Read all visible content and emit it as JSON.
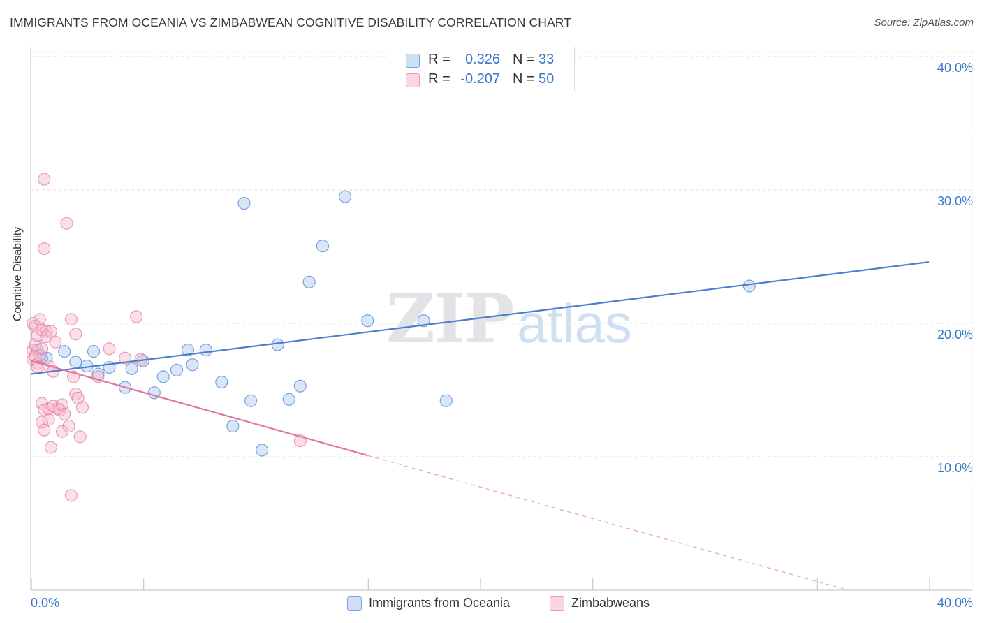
{
  "title": "IMMIGRANTS FROM OCEANIA VS ZIMBABWEAN COGNITIVE DISABILITY CORRELATION CHART",
  "source": "Source: ZipAtlas.com",
  "watermark": {
    "zip": "ZIP",
    "atlas": "atlas"
  },
  "correlation_box": {
    "rows": [
      {
        "r_label": "R =",
        "r_value": "0.326",
        "n_label": "N =",
        "n_value": "33",
        "color": "#a9c8f0"
      },
      {
        "r_label": "R =",
        "r_value": "-0.207",
        "n_label": "N =",
        "n_value": "50",
        "color": "#f6b9cc"
      }
    ]
  },
  "legend": {
    "items": [
      {
        "label": "Immigrants from Oceania",
        "color": "#a9c8f0"
      },
      {
        "label": "Zimbabweans",
        "color": "#f6b9cc"
      }
    ]
  },
  "chart_data": {
    "type": "scatter",
    "title": "IMMIGRANTS FROM OCEANIA VS ZIMBABWEAN COGNITIVE DISABILITY CORRELATION CHART",
    "xlabel": "",
    "ylabel": "Cognitive Disability",
    "xlim": [
      0,
      40
    ],
    "ylim": [
      0,
      42
    ],
    "x_tick_labels": {
      "left": "0.0%",
      "right": "40.0%"
    },
    "y_ticks": [
      10,
      20,
      30,
      40
    ],
    "y_tick_labels": [
      "10.0%",
      "20.0%",
      "30.0%",
      "40.0%"
    ],
    "grid": true,
    "legend_position": "bottom-center",
    "series": [
      {
        "name": "Immigrants from Oceania",
        "color": "#4a7fd0",
        "fill": "#a9c8f0",
        "points": [
          [
            0.3,
            18.0
          ],
          [
            0.5,
            17.4
          ],
          [
            0.7,
            17.4
          ],
          [
            1.5,
            17.9
          ],
          [
            2.0,
            17.1
          ],
          [
            2.5,
            16.8
          ],
          [
            2.8,
            17.9
          ],
          [
            3.0,
            16.2
          ],
          [
            3.5,
            16.7
          ],
          [
            4.2,
            15.2
          ],
          [
            4.5,
            16.6
          ],
          [
            5.0,
            17.2
          ],
          [
            5.5,
            14.8
          ],
          [
            5.9,
            16.0
          ],
          [
            6.5,
            16.5
          ],
          [
            7.0,
            18.0
          ],
          [
            7.2,
            16.9
          ],
          [
            7.8,
            18.0
          ],
          [
            8.5,
            15.6
          ],
          [
            9.0,
            12.3
          ],
          [
            9.5,
            29.0
          ],
          [
            9.8,
            14.2
          ],
          [
            10.3,
            10.5
          ],
          [
            11.0,
            18.4
          ],
          [
            11.5,
            14.3
          ],
          [
            12.0,
            15.3
          ],
          [
            12.4,
            23.1
          ],
          [
            13.0,
            25.8
          ],
          [
            14.0,
            29.5
          ],
          [
            15.0,
            20.2
          ],
          [
            17.5,
            20.2
          ],
          [
            18.5,
            14.2
          ],
          [
            32.0,
            22.8
          ]
        ],
        "trend": {
          "x": [
            0,
            40
          ],
          "y": [
            16.2,
            24.6
          ],
          "style": "solid"
        }
      },
      {
        "name": "Zimbabweans",
        "color": "#e07799",
        "fill": "#f6b9cc",
        "points": [
          [
            0.1,
            20.0
          ],
          [
            0.1,
            18.0
          ],
          [
            0.1,
            17.3
          ],
          [
            0.2,
            19.8
          ],
          [
            0.2,
            18.4
          ],
          [
            0.2,
            17.5
          ],
          [
            0.3,
            19.1
          ],
          [
            0.3,
            17.0
          ],
          [
            0.3,
            16.7
          ],
          [
            0.4,
            20.3
          ],
          [
            0.4,
            17.6
          ],
          [
            0.5,
            19.5
          ],
          [
            0.5,
            18.1
          ],
          [
            0.5,
            14.0
          ],
          [
            0.5,
            12.6
          ],
          [
            0.6,
            12.0
          ],
          [
            0.6,
            30.8
          ],
          [
            0.6,
            13.5
          ],
          [
            0.6,
            25.6
          ],
          [
            0.7,
            19.4
          ],
          [
            0.7,
            19.0
          ],
          [
            0.8,
            12.8
          ],
          [
            0.8,
            16.8
          ],
          [
            0.8,
            13.6
          ],
          [
            0.9,
            10.7
          ],
          [
            0.9,
            19.4
          ],
          [
            1.0,
            13.8
          ],
          [
            1.0,
            16.4
          ],
          [
            1.1,
            18.6
          ],
          [
            1.2,
            13.6
          ],
          [
            1.3,
            13.5
          ],
          [
            1.4,
            13.9
          ],
          [
            1.4,
            11.9
          ],
          [
            1.5,
            13.2
          ],
          [
            1.6,
            27.5
          ],
          [
            1.7,
            12.3
          ],
          [
            1.8,
            20.3
          ],
          [
            1.8,
            7.1
          ],
          [
            1.9,
            16.0
          ],
          [
            2.0,
            19.2
          ],
          [
            2.0,
            14.7
          ],
          [
            2.1,
            14.4
          ],
          [
            2.2,
            11.5
          ],
          [
            2.3,
            13.7
          ],
          [
            3.0,
            16.0
          ],
          [
            3.5,
            18.1
          ],
          [
            4.2,
            17.4
          ],
          [
            4.7,
            20.5
          ],
          [
            4.9,
            17.3
          ],
          [
            12.0,
            11.2
          ]
        ],
        "trend": {
          "x": [
            0,
            15.0
          ],
          "y": [
            17.2,
            10.1
          ],
          "style": "solid"
        },
        "trend_extension": {
          "x": [
            15.0,
            40
          ],
          "y": [
            10.1,
            -1.7
          ],
          "style": "dashed"
        }
      }
    ]
  }
}
